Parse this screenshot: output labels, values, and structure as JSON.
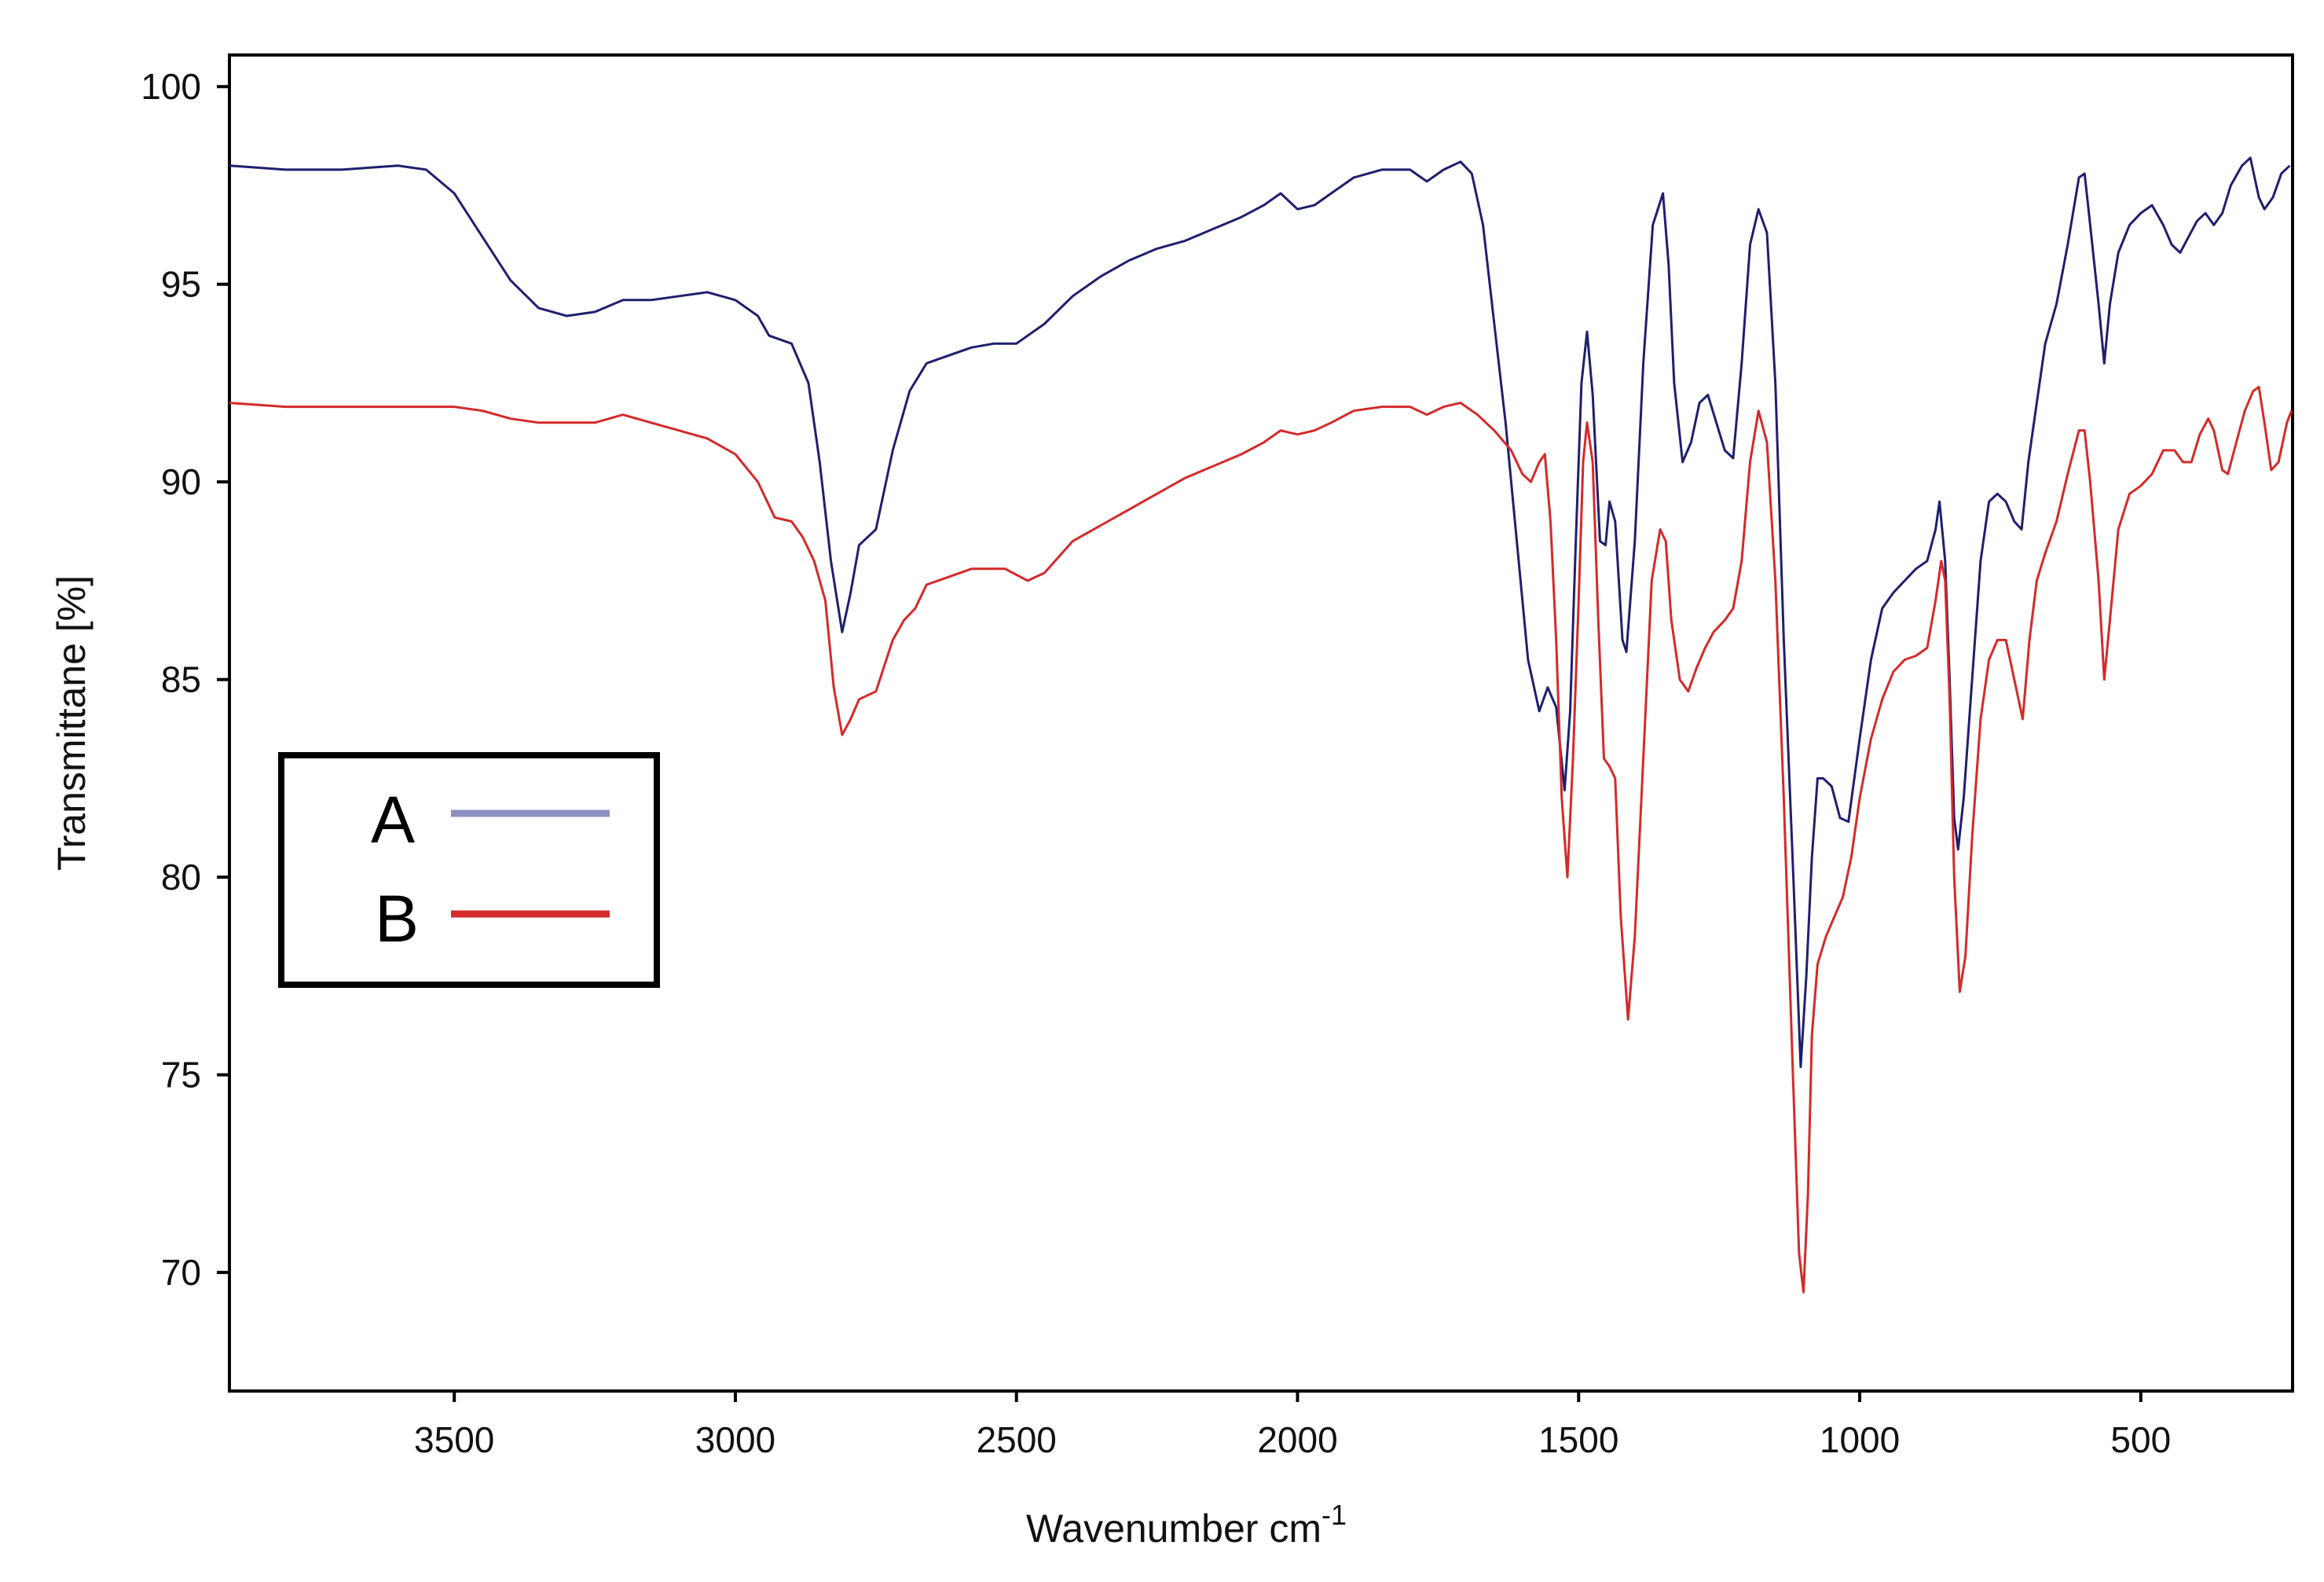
{
  "chart_data": {
    "type": "line",
    "title": "",
    "xlabel": "Wavenumber cm",
    "xlabel_superscript": "-1",
    "ylabel": "Transmittane [%]",
    "xlim": [
      3900,
      230
    ],
    "ylim": [
      67,
      100.8
    ],
    "x_reversed": true,
    "grid": false,
    "legend_position": "left",
    "xticks": [
      3500,
      3000,
      2500,
      2000,
      1500,
      1000,
      500
    ],
    "xtick_labels": [
      "3500",
      "3000",
      "2500",
      "2000",
      "1500",
      "1000",
      "500"
    ],
    "yticks": [
      70,
      75,
      80,
      85,
      90,
      95,
      100
    ],
    "ytick_labels": [
      "70",
      "75",
      "80",
      "85",
      "90",
      "95",
      "100"
    ],
    "series": [
      {
        "name": "A",
        "line_color": "#1f1f6e",
        "legend_color": "#8f8fc4",
        "points": [
          [
            3900,
            98
          ],
          [
            3800,
            97.9
          ],
          [
            3700,
            97.9
          ],
          [
            3600,
            98
          ],
          [
            3550,
            97.9
          ],
          [
            3500,
            97.3
          ],
          [
            3450,
            96.2
          ],
          [
            3400,
            95.1
          ],
          [
            3350,
            94.4
          ],
          [
            3300,
            94.2
          ],
          [
            3250,
            94.3
          ],
          [
            3200,
            94.6
          ],
          [
            3150,
            94.6
          ],
          [
            3100,
            94.7
          ],
          [
            3050,
            94.8
          ],
          [
            3000,
            94.6
          ],
          [
            2960,
            94.2
          ],
          [
            2940,
            93.7
          ],
          [
            2900,
            93.5
          ],
          [
            2870,
            92.5
          ],
          [
            2850,
            90.5
          ],
          [
            2830,
            88
          ],
          [
            2810,
            86.2
          ],
          [
            2795,
            87.2
          ],
          [
            2780,
            88.4
          ],
          [
            2750,
            88.8
          ],
          [
            2720,
            90.8
          ],
          [
            2690,
            92.3
          ],
          [
            2660,
            93
          ],
          [
            2620,
            93.2
          ],
          [
            2580,
            93.4
          ],
          [
            2540,
            93.5
          ],
          [
            2500,
            93.5
          ],
          [
            2450,
            94
          ],
          [
            2400,
            94.7
          ],
          [
            2350,
            95.2
          ],
          [
            2300,
            95.6
          ],
          [
            2250,
            95.9
          ],
          [
            2200,
            96.1
          ],
          [
            2150,
            96.4
          ],
          [
            2100,
            96.7
          ],
          [
            2060,
            97
          ],
          [
            2030,
            97.3
          ],
          [
            2000,
            96.9
          ],
          [
            1970,
            97
          ],
          [
            1940,
            97.3
          ],
          [
            1900,
            97.7
          ],
          [
            1850,
            97.9
          ],
          [
            1800,
            97.9
          ],
          [
            1770,
            97.6
          ],
          [
            1740,
            97.9
          ],
          [
            1710,
            98.1
          ],
          [
            1690,
            97.8
          ],
          [
            1670,
            96.5
          ],
          [
            1650,
            94
          ],
          [
            1630,
            91.5
          ],
          [
            1610,
            88.5
          ],
          [
            1590,
            85.5
          ],
          [
            1570,
            84.2
          ],
          [
            1555,
            84.8
          ],
          [
            1540,
            84.3
          ],
          [
            1525,
            82.2
          ],
          [
            1515,
            84.2
          ],
          [
            1505,
            88.5
          ],
          [
            1495,
            92.5
          ],
          [
            1485,
            93.8
          ],
          [
            1475,
            92.2
          ],
          [
            1462,
            88.5
          ],
          [
            1452,
            88.4
          ],
          [
            1445,
            89.5
          ],
          [
            1435,
            89
          ],
          [
            1422,
            86
          ],
          [
            1415,
            85.7
          ],
          [
            1400,
            88.5
          ],
          [
            1385,
            93
          ],
          [
            1368,
            96.5
          ],
          [
            1350,
            97.3
          ],
          [
            1340,
            95.5
          ],
          [
            1330,
            92.5
          ],
          [
            1315,
            90.5
          ],
          [
            1300,
            91
          ],
          [
            1285,
            92
          ],
          [
            1270,
            92.2
          ],
          [
            1255,
            91.5
          ],
          [
            1240,
            90.8
          ],
          [
            1225,
            90.6
          ],
          [
            1210,
            93
          ],
          [
            1195,
            96
          ],
          [
            1180,
            96.9
          ],
          [
            1165,
            96.3
          ],
          [
            1150,
            92.5
          ],
          [
            1135,
            86
          ],
          [
            1118,
            80
          ],
          [
            1105,
            75.2
          ],
          [
            1095,
            77.5
          ],
          [
            1085,
            80.5
          ],
          [
            1075,
            82.5
          ],
          [
            1065,
            82.5
          ],
          [
            1050,
            82.3
          ],
          [
            1035,
            81.5
          ],
          [
            1020,
            81.4
          ],
          [
            1000,
            83.5
          ],
          [
            980,
            85.5
          ],
          [
            960,
            86.8
          ],
          [
            940,
            87.2
          ],
          [
            920,
            87.5
          ],
          [
            900,
            87.8
          ],
          [
            880,
            88
          ],
          [
            865,
            88.8
          ],
          [
            858,
            89.5
          ],
          [
            848,
            88
          ],
          [
            840,
            85
          ],
          [
            832,
            81.5
          ],
          [
            825,
            80.7
          ],
          [
            815,
            82
          ],
          [
            800,
            85
          ],
          [
            785,
            88
          ],
          [
            770,
            89.5
          ],
          [
            755,
            89.7
          ],
          [
            740,
            89.5
          ],
          [
            725,
            89
          ],
          [
            712,
            88.8
          ],
          [
            700,
            90.5
          ],
          [
            685,
            92
          ],
          [
            670,
            93.5
          ],
          [
            650,
            94.5
          ],
          [
            630,
            96
          ],
          [
            610,
            97.7
          ],
          [
            600,
            97.8
          ],
          [
            590,
            96.5
          ],
          [
            575,
            94.5
          ],
          [
            565,
            93
          ],
          [
            555,
            94.5
          ],
          [
            540,
            95.8
          ],
          [
            520,
            96.5
          ],
          [
            500,
            96.8
          ],
          [
            480,
            97
          ],
          [
            460,
            96.5
          ],
          [
            445,
            96
          ],
          [
            430,
            95.8
          ],
          [
            415,
            96.2
          ],
          [
            400,
            96.6
          ],
          [
            385,
            96.8
          ],
          [
            370,
            96.5
          ],
          [
            355,
            96.8
          ],
          [
            340,
            97.5
          ],
          [
            320,
            98
          ],
          [
            305,
            98.2
          ],
          [
            290,
            97.2
          ],
          [
            280,
            96.9
          ],
          [
            265,
            97.2
          ],
          [
            250,
            97.8
          ],
          [
            235,
            98
          ]
        ]
      },
      {
        "name": "B",
        "line_color": "#d42a2a",
        "legend_color": "#d42a2a",
        "points": [
          [
            3900,
            92
          ],
          [
            3800,
            91.9
          ],
          [
            3700,
            91.9
          ],
          [
            3600,
            91.9
          ],
          [
            3500,
            91.9
          ],
          [
            3450,
            91.8
          ],
          [
            3400,
            91.6
          ],
          [
            3350,
            91.5
          ],
          [
            3300,
            91.5
          ],
          [
            3250,
            91.5
          ],
          [
            3200,
            91.7
          ],
          [
            3150,
            91.5
          ],
          [
            3100,
            91.3
          ],
          [
            3050,
            91.1
          ],
          [
            3000,
            90.7
          ],
          [
            2960,
            90
          ],
          [
            2930,
            89.1
          ],
          [
            2900,
            89
          ],
          [
            2880,
            88.6
          ],
          [
            2860,
            88
          ],
          [
            2840,
            87
          ],
          [
            2825,
            84.8
          ],
          [
            2810,
            83.6
          ],
          [
            2795,
            84
          ],
          [
            2780,
            84.5
          ],
          [
            2750,
            84.7
          ],
          [
            2720,
            86
          ],
          [
            2700,
            86.5
          ],
          [
            2680,
            86.8
          ],
          [
            2660,
            87.4
          ],
          [
            2620,
            87.6
          ],
          [
            2580,
            87.8
          ],
          [
            2550,
            87.8
          ],
          [
            2520,
            87.8
          ],
          [
            2480,
            87.5
          ],
          [
            2450,
            87.7
          ],
          [
            2400,
            88.5
          ],
          [
            2350,
            88.9
          ],
          [
            2300,
            89.3
          ],
          [
            2250,
            89.7
          ],
          [
            2200,
            90.1
          ],
          [
            2150,
            90.4
          ],
          [
            2100,
            90.7
          ],
          [
            2060,
            91
          ],
          [
            2030,
            91.3
          ],
          [
            2000,
            91.2
          ],
          [
            1970,
            91.3
          ],
          [
            1940,
            91.5
          ],
          [
            1900,
            91.8
          ],
          [
            1850,
            91.9
          ],
          [
            1800,
            91.9
          ],
          [
            1770,
            91.7
          ],
          [
            1740,
            91.9
          ],
          [
            1710,
            92
          ],
          [
            1680,
            91.7
          ],
          [
            1650,
            91.3
          ],
          [
            1620,
            90.8
          ],
          [
            1600,
            90.2
          ],
          [
            1585,
            90
          ],
          [
            1570,
            90.5
          ],
          [
            1560,
            90.7
          ],
          [
            1550,
            89
          ],
          [
            1540,
            86
          ],
          [
            1530,
            82
          ],
          [
            1520,
            80
          ],
          [
            1510,
            83
          ],
          [
            1500,
            87
          ],
          [
            1492,
            90.5
          ],
          [
            1485,
            91.5
          ],
          [
            1475,
            90.5
          ],
          [
            1465,
            86.5
          ],
          [
            1455,
            83
          ],
          [
            1445,
            82.8
          ],
          [
            1435,
            82.5
          ],
          [
            1425,
            79
          ],
          [
            1412,
            76.4
          ],
          [
            1400,
            78.5
          ],
          [
            1385,
            83
          ],
          [
            1370,
            87.5
          ],
          [
            1355,
            88.8
          ],
          [
            1345,
            88.5
          ],
          [
            1335,
            86.5
          ],
          [
            1320,
            85
          ],
          [
            1305,
            84.7
          ],
          [
            1290,
            85.3
          ],
          [
            1275,
            85.8
          ],
          [
            1260,
            86.2
          ],
          [
            1240,
            86.5
          ],
          [
            1225,
            86.8
          ],
          [
            1210,
            88
          ],
          [
            1195,
            90.5
          ],
          [
            1180,
            91.8
          ],
          [
            1165,
            91
          ],
          [
            1150,
            87.5
          ],
          [
            1135,
            82
          ],
          [
            1120,
            75.5
          ],
          [
            1108,
            70.5
          ],
          [
            1100,
            69.5
          ],
          [
            1092,
            72
          ],
          [
            1085,
            76
          ],
          [
            1075,
            77.8
          ],
          [
            1060,
            78.5
          ],
          [
            1045,
            79
          ],
          [
            1030,
            79.5
          ],
          [
            1015,
            80.5
          ],
          [
            1000,
            82
          ],
          [
            980,
            83.5
          ],
          [
            960,
            84.5
          ],
          [
            940,
            85.2
          ],
          [
            920,
            85.5
          ],
          [
            900,
            85.6
          ],
          [
            880,
            85.8
          ],
          [
            865,
            87
          ],
          [
            855,
            88
          ],
          [
            848,
            87.5
          ],
          [
            840,
            84.5
          ],
          [
            832,
            80
          ],
          [
            822,
            77.1
          ],
          [
            812,
            78
          ],
          [
            800,
            81
          ],
          [
            785,
            84
          ],
          [
            770,
            85.5
          ],
          [
            755,
            86
          ],
          [
            740,
            86
          ],
          [
            725,
            85
          ],
          [
            710,
            84
          ],
          [
            698,
            86
          ],
          [
            685,
            87.5
          ],
          [
            670,
            88.2
          ],
          [
            650,
            89
          ],
          [
            630,
            90.2
          ],
          [
            610,
            91.3
          ],
          [
            600,
            91.3
          ],
          [
            590,
            90
          ],
          [
            575,
            87.5
          ],
          [
            565,
            85
          ],
          [
            555,
            86.5
          ],
          [
            540,
            88.8
          ],
          [
            520,
            89.7
          ],
          [
            500,
            89.9
          ],
          [
            480,
            90.2
          ],
          [
            460,
            90.8
          ],
          [
            440,
            90.8
          ],
          [
            425,
            90.5
          ],
          [
            410,
            90.5
          ],
          [
            395,
            91.2
          ],
          [
            380,
            91.6
          ],
          [
            370,
            91.3
          ],
          [
            355,
            90.3
          ],
          [
            345,
            90.2
          ],
          [
            330,
            91
          ],
          [
            315,
            91.8
          ],
          [
            300,
            92.3
          ],
          [
            290,
            92.4
          ],
          [
            280,
            91.5
          ],
          [
            268,
            90.3
          ],
          [
            255,
            90.5
          ],
          [
            240,
            91.5
          ],
          [
            232,
            91.8
          ]
        ]
      }
    ]
  }
}
